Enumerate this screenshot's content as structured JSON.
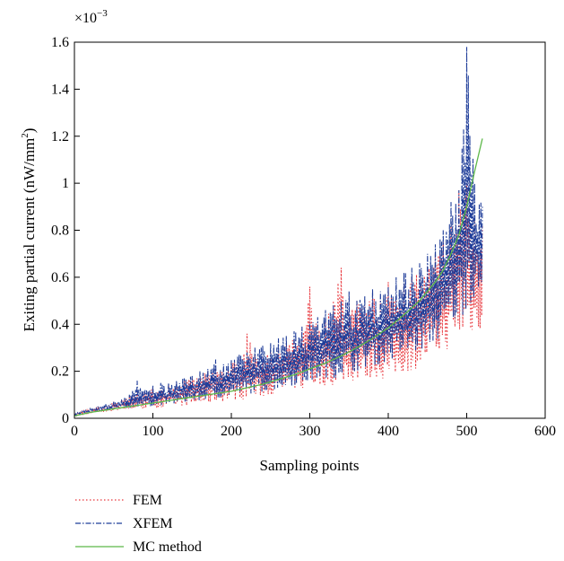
{
  "chart_data": {
    "type": "line",
    "title": "",
    "xlabel": "Sampling points",
    "ylabel": "Exiting partial current (nW/mm",
    "ylabel_sup": "2",
    "ylabel_end": ")",
    "y_multiplier": "×10",
    "y_multiplier_exp": "−3",
    "xlim": [
      0,
      600
    ],
    "ylim": [
      0,
      1.6
    ],
    "x_ticks": [
      "0",
      "100",
      "200",
      "300",
      "400",
      "500",
      "600"
    ],
    "y_ticks": [
      "0",
      "0.2",
      "0.4",
      "0.6",
      "0.8",
      "1",
      "1.2",
      "1.4",
      "1.6"
    ],
    "grid": false,
    "legend_position": "below",
    "series": [
      {
        "name": "FEM",
        "color": "#e8363c",
        "style": "dotted",
        "x": [
          0,
          10,
          20,
          30,
          40,
          50,
          60,
          70,
          80,
          90,
          100,
          110,
          120,
          130,
          140,
          150,
          160,
          170,
          180,
          190,
          200,
          210,
          220,
          230,
          240,
          250,
          260,
          270,
          280,
          290,
          300,
          310,
          320,
          330,
          340,
          350,
          360,
          370,
          380,
          390,
          400,
          410,
          420,
          430,
          440,
          450,
          460,
          470,
          480,
          490,
          500,
          510,
          520
        ],
        "y_low": [
          0.01,
          0.015,
          0.02,
          0.02,
          0.025,
          0.03,
          0.035,
          0.03,
          0.04,
          0.04,
          0.045,
          0.04,
          0.05,
          0.05,
          0.055,
          0.05,
          0.06,
          0.06,
          0.07,
          0.07,
          0.075,
          0.08,
          0.08,
          0.09,
          0.09,
          0.1,
          0.1,
          0.11,
          0.12,
          0.12,
          0.13,
          0.13,
          0.14,
          0.14,
          0.15,
          0.15,
          0.16,
          0.16,
          0.17,
          0.17,
          0.15,
          0.18,
          0.19,
          0.2,
          0.22,
          0.24,
          0.26,
          0.28,
          0.3,
          0.32,
          0.34,
          0.36,
          0.38
        ],
        "y_high": [
          0.02,
          0.03,
          0.04,
          0.05,
          0.05,
          0.07,
          0.08,
          0.09,
          0.12,
          0.11,
          0.13,
          0.12,
          0.14,
          0.15,
          0.16,
          0.17,
          0.18,
          0.2,
          0.22,
          0.21,
          0.24,
          0.25,
          0.36,
          0.27,
          0.26,
          0.28,
          0.3,
          0.32,
          0.34,
          0.33,
          0.56,
          0.38,
          0.42,
          0.5,
          0.64,
          0.46,
          0.5,
          0.48,
          0.52,
          0.5,
          0.58,
          0.52,
          0.57,
          0.6,
          0.62,
          0.65,
          0.7,
          0.75,
          0.82,
          0.97,
          1.0,
          0.85,
          0.82
        ]
      },
      {
        "name": "XFEM",
        "color": "#1f3d99",
        "style": "dashdot",
        "x": [
          0,
          10,
          20,
          30,
          40,
          50,
          60,
          70,
          80,
          90,
          100,
          110,
          120,
          130,
          140,
          150,
          160,
          170,
          180,
          190,
          200,
          210,
          220,
          230,
          240,
          250,
          260,
          270,
          280,
          290,
          300,
          310,
          320,
          330,
          340,
          350,
          360,
          370,
          380,
          390,
          400,
          410,
          420,
          430,
          440,
          450,
          460,
          470,
          480,
          490,
          500,
          510,
          520
        ],
        "y_low": [
          0.01,
          0.02,
          0.025,
          0.03,
          0.03,
          0.035,
          0.04,
          0.04,
          0.045,
          0.05,
          0.05,
          0.055,
          0.06,
          0.06,
          0.065,
          0.07,
          0.07,
          0.08,
          0.08,
          0.09,
          0.09,
          0.1,
          0.1,
          0.11,
          0.11,
          0.12,
          0.12,
          0.13,
          0.14,
          0.14,
          0.15,
          0.16,
          0.17,
          0.17,
          0.18,
          0.19,
          0.2,
          0.21,
          0.22,
          0.23,
          0.24,
          0.25,
          0.26,
          0.27,
          0.28,
          0.3,
          0.32,
          0.34,
          0.38,
          0.42,
          0.46,
          0.5,
          0.55
        ],
        "y_high": [
          0.02,
          0.03,
          0.04,
          0.05,
          0.06,
          0.07,
          0.08,
          0.1,
          0.16,
          0.12,
          0.14,
          0.15,
          0.15,
          0.16,
          0.17,
          0.18,
          0.2,
          0.21,
          0.25,
          0.23,
          0.25,
          0.27,
          0.28,
          0.3,
          0.31,
          0.32,
          0.34,
          0.35,
          0.37,
          0.39,
          0.41,
          0.43,
          0.46,
          0.48,
          0.5,
          0.54,
          0.5,
          0.52,
          0.55,
          0.54,
          0.56,
          0.6,
          0.62,
          0.64,
          0.66,
          0.7,
          0.74,
          0.8,
          0.92,
          0.97,
          1.58,
          1.0,
          0.9
        ]
      },
      {
        "name": "MC method",
        "color": "#5cb848",
        "style": "solid",
        "x": [
          0,
          20,
          40,
          60,
          80,
          100,
          120,
          140,
          160,
          180,
          200,
          220,
          240,
          260,
          280,
          300,
          320,
          340,
          360,
          380,
          400,
          420,
          440,
          460,
          470,
          480,
          490,
          500,
          510,
          520
        ],
        "y": [
          0.01,
          0.025,
          0.035,
          0.045,
          0.055,
          0.065,
          0.075,
          0.085,
          0.095,
          0.105,
          0.115,
          0.13,
          0.145,
          0.165,
          0.185,
          0.21,
          0.235,
          0.265,
          0.3,
          0.34,
          0.385,
          0.44,
          0.5,
          0.58,
          0.63,
          0.7,
          0.78,
          0.9,
          1.05,
          1.19
        ]
      }
    ]
  }
}
